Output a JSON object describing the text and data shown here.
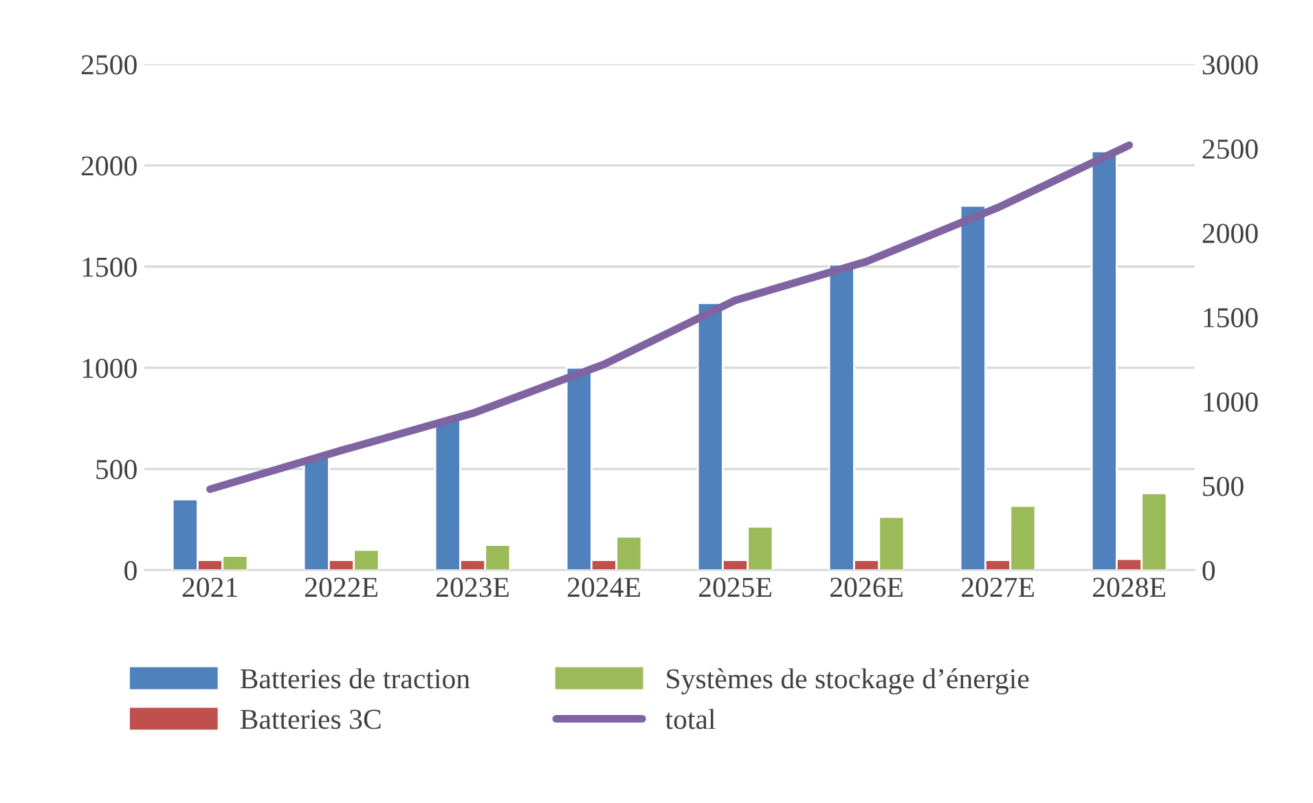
{
  "chart_data": {
    "type": "bar",
    "categories": [
      "2021",
      "2022E",
      "2023E",
      "2024E",
      "2025E",
      "2026E",
      "2027E",
      "2028E"
    ],
    "series": [
      {
        "name": "Batteries de traction",
        "color": "#4f81bd",
        "values": [
          350,
          560,
          750,
          1000,
          1320,
          1510,
          1800,
          2070
        ]
      },
      {
        "name": "Batteries 3C",
        "color": "#c0504d",
        "values": [
          50,
          50,
          50,
          50,
          50,
          50,
          50,
          55
        ]
      },
      {
        "name": "Systèmes de stockage d’énergie",
        "color": "#9bbb59",
        "values": [
          70,
          100,
          125,
          165,
          215,
          263,
          317,
          380
        ]
      },
      {
        "name": "total",
        "type": "line",
        "axis": "y2",
        "color": "#8064a2",
        "values": [
          480,
          710,
          930,
          1220,
          1600,
          1830,
          2150,
          2520
        ]
      }
    ],
    "ylim": [
      0,
      2500
    ],
    "yticks": [
      0,
      500,
      1000,
      1500,
      2000,
      2500
    ],
    "y2lim": [
      0,
      3000
    ],
    "y2ticks": [
      0,
      500,
      1000,
      1500,
      2000,
      2500,
      3000
    ],
    "grid": "y",
    "legend": "bottom",
    "marker": "none",
    "line_style": "solid"
  }
}
